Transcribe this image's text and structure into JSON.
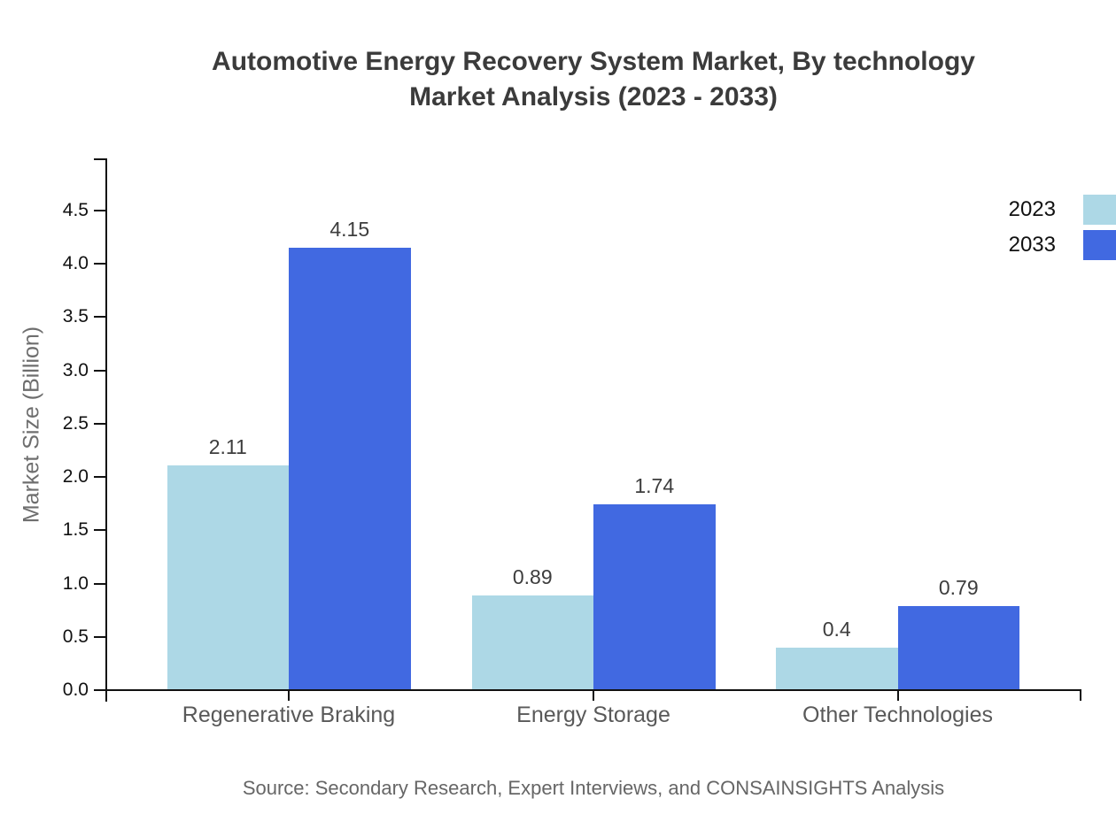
{
  "title": {
    "line1": "Automotive Energy Recovery System Market, By technology",
    "line2": "Market Analysis (2023 - 2033)"
  },
  "chart_data": {
    "type": "bar",
    "title": "Automotive Energy Recovery System Market, By technology Market Analysis (2023 - 2033)",
    "categories": [
      "Regenerative Braking",
      "Energy Storage",
      "Other Technologies"
    ],
    "series": [
      {
        "name": "2023",
        "color": "#add8e6",
        "values": [
          2.11,
          0.89,
          0.4
        ]
      },
      {
        "name": "2033",
        "color": "#4169e1",
        "values": [
          4.15,
          1.74,
          0.79
        ]
      }
    ],
    "xlabel": "",
    "ylabel": "Market Size (Billion)",
    "yticks": [
      "0.0",
      "0.5",
      "1.0",
      "1.5",
      "2.0",
      "2.5",
      "3.0",
      "3.5",
      "4.0",
      "4.5"
    ],
    "ylim": [
      0,
      5
    ],
    "grid": false,
    "legend_position": "top-right",
    "source": "Source: Secondary Research, Expert Interviews, and CONSAINSIGHTS Analysis",
    "colors": {
      "background": "#ffffff",
      "axis": "#111111",
      "title_text": "#3b3b3b",
      "tick_label_text": "#111111",
      "category_label_text": "#595959",
      "value_label_text": "#3d3d3d",
      "y_axis_title_text": "#6e6e6e",
      "source_text": "#666666"
    }
  }
}
